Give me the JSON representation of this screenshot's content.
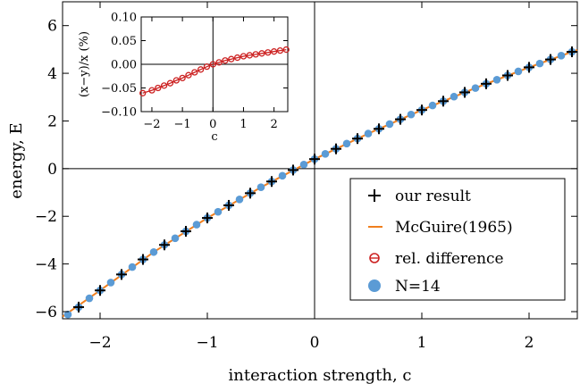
{
  "chart_data": [
    {
      "type": "line",
      "role": "main",
      "xlabel": "interaction strength, c",
      "ylabel": "energy, E",
      "xlim": [
        -2.35,
        2.45
      ],
      "ylim": [
        -6.3,
        7.0
      ],
      "xticks": [
        -2,
        -1,
        0,
        1,
        2
      ],
      "xtick_labels": [
        "−2",
        "−1",
        "0",
        "1",
        "2"
      ],
      "yticks": [
        -6,
        -4,
        -2,
        0,
        2,
        4,
        6
      ],
      "ytick_labels": [
        "−6",
        "−4",
        "−2",
        "0",
        "2",
        "4",
        "6"
      ],
      "grid": false,
      "legend_position": "bottom-right",
      "series": [
        {
          "name": "our result",
          "marker": "plus",
          "color": "#000000",
          "x": [
            -2.2,
            -2.0,
            -1.8,
            -1.6,
            -1.4,
            -1.2,
            -1.0,
            -0.8,
            -0.6,
            -0.4,
            -0.2,
            0.0,
            0.2,
            0.4,
            0.6,
            0.8,
            1.0,
            1.2,
            1.4,
            1.6,
            1.8,
            2.0,
            2.2,
            2.4
          ],
          "y": [
            -5.81,
            -5.11,
            -4.44,
            -3.81,
            -3.2,
            -2.63,
            -2.07,
            -1.54,
            -1.03,
            -0.54,
            -0.06,
            0.4,
            0.83,
            1.26,
            1.67,
            2.07,
            2.46,
            2.83,
            3.2,
            3.56,
            3.91,
            4.25,
            4.58,
            4.9
          ]
        },
        {
          "name": "McGuire(1965)",
          "marker": "line",
          "color": "#f07f1e",
          "x": [
            -2.35,
            -2.0,
            -1.5,
            -1.0,
            -0.5,
            0.0,
            0.5,
            1.0,
            1.5,
            2.0,
            2.45
          ],
          "y": [
            -6.21,
            -5.11,
            -3.5,
            -2.07,
            -0.78,
            0.4,
            1.47,
            2.46,
            3.38,
            4.25,
            4.98
          ]
        },
        {
          "name": "rel. difference",
          "marker": "open-circle",
          "color": "#cc2222"
        },
        {
          "name": "N=14",
          "marker": "filled-circle",
          "color": "#5b9bd5",
          "x": [
            -2.3,
            -2.2,
            -2.1,
            -2.0,
            -1.9,
            -1.8,
            -1.7,
            -1.6,
            -1.5,
            -1.4,
            -1.3,
            -1.2,
            -1.1,
            -1.0,
            -0.9,
            -0.8,
            -0.7,
            -0.6,
            -0.5,
            -0.4,
            -0.3,
            -0.2,
            -0.1,
            0.0,
            0.1,
            0.2,
            0.3,
            0.4,
            0.5,
            0.6,
            0.7,
            0.8,
            0.9,
            1.0,
            1.1,
            1.2,
            1.3,
            1.4,
            1.5,
            1.6,
            1.7,
            1.8,
            1.9,
            2.0,
            2.1,
            2.2,
            2.3,
            2.4
          ],
          "y": [
            -6.12,
            -5.81,
            -5.44,
            -5.11,
            -4.78,
            -4.44,
            -4.13,
            -3.81,
            -3.5,
            -3.2,
            -2.92,
            -2.63,
            -2.35,
            -2.07,
            -1.81,
            -1.54,
            -1.29,
            -1.03,
            -0.78,
            -0.54,
            -0.3,
            -0.06,
            0.17,
            0.4,
            0.62,
            0.83,
            1.05,
            1.26,
            1.47,
            1.67,
            1.87,
            2.07,
            2.27,
            2.46,
            2.65,
            2.83,
            3.02,
            3.2,
            3.38,
            3.56,
            3.73,
            3.91,
            4.08,
            4.25,
            4.41,
            4.58,
            4.74,
            4.9
          ]
        }
      ]
    },
    {
      "type": "line",
      "role": "inset",
      "xlabel": "c",
      "ylabel": "(x−y)/x (%)",
      "xlim": [
        -2.35,
        2.45
      ],
      "ylim": [
        -0.1,
        0.1
      ],
      "xticks": [
        -2,
        -1,
        0,
        1,
        2
      ],
      "xtick_labels": [
        "−2",
        "−1",
        "0",
        "1",
        "2"
      ],
      "yticks": [
        -0.1,
        -0.05,
        0.0,
        0.05,
        0.1
      ],
      "ytick_labels": [
        "−0.10",
        "−0.05",
        "0.00",
        "0.05",
        "0.10"
      ],
      "grid": false,
      "series": [
        {
          "marker": "open-circle-line",
          "color": "#cc2222",
          "x": [
            -2.3,
            -2.0,
            -1.8,
            -1.6,
            -1.4,
            -1.2,
            -1.0,
            -0.8,
            -0.6,
            -0.4,
            -0.2,
            0.0,
            0.2,
            0.4,
            0.6,
            0.8,
            1.0,
            1.2,
            1.4,
            1.6,
            1.8,
            2.0,
            2.2,
            2.4
          ],
          "y": [
            -0.061,
            -0.055,
            -0.05,
            -0.045,
            -0.04,
            -0.034,
            -0.029,
            -0.023,
            -0.017,
            -0.011,
            -0.005,
            0.0,
            0.004,
            0.008,
            0.011,
            0.014,
            0.017,
            0.019,
            0.021,
            0.023,
            0.025,
            0.027,
            0.029,
            0.031
          ]
        }
      ]
    }
  ]
}
